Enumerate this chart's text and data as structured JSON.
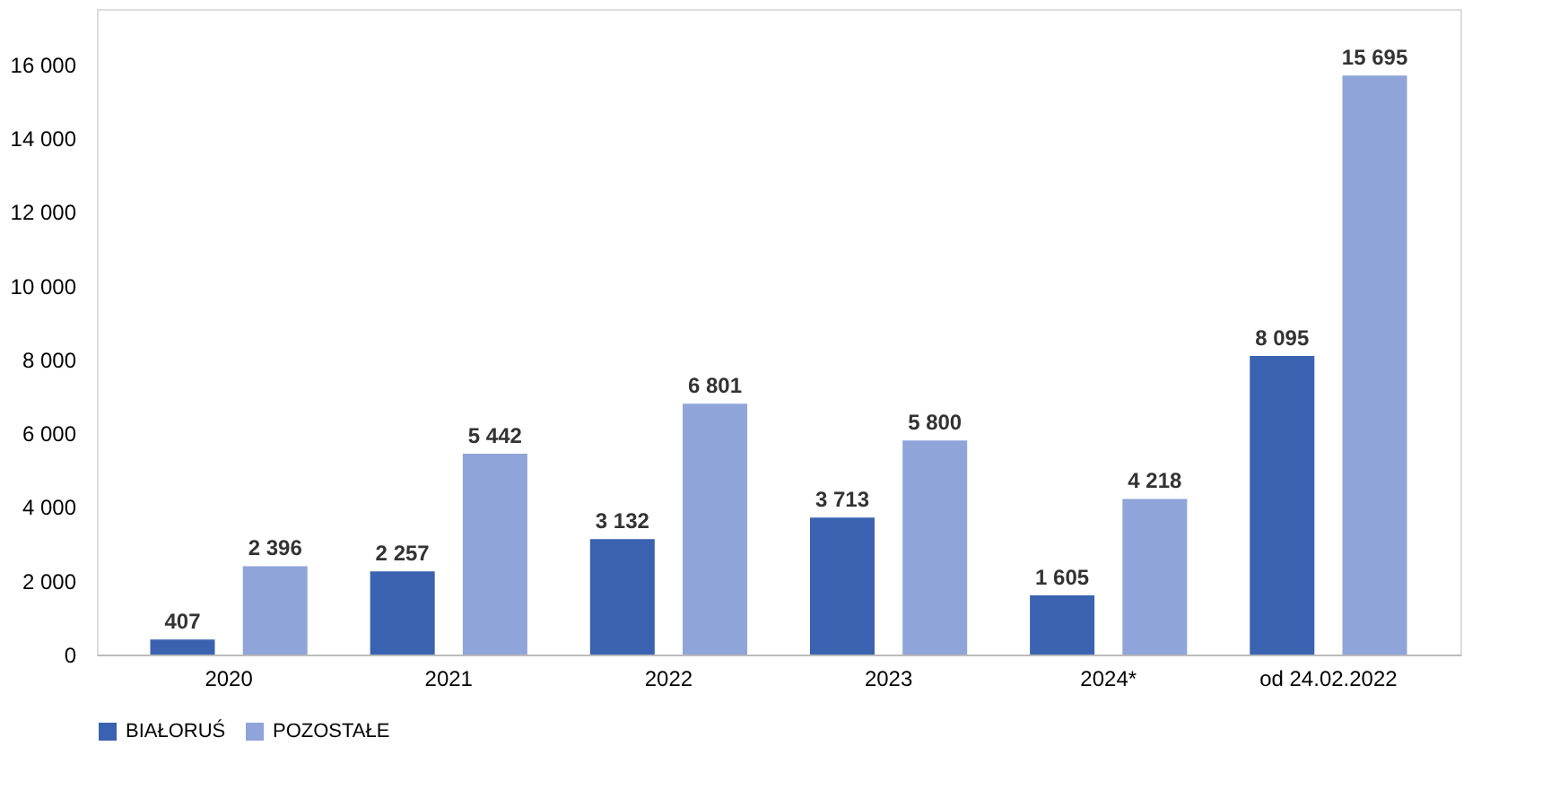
{
  "chart_data": {
    "type": "bar",
    "categories": [
      "2020",
      "2021",
      "2022",
      "2023",
      "2024*",
      "od 24.02.2022"
    ],
    "series": [
      {
        "name": "BIAŁORUŚ",
        "color": "#3a62b0",
        "values": [
          407,
          2257,
          3132,
          3713,
          1605,
          8095
        ],
        "value_labels": [
          "407",
          "2 257",
          "3 132",
          "3 713",
          "1 605",
          "8 095"
        ]
      },
      {
        "name": "POZOSTAŁE",
        "color": "#8fa4d8",
        "values": [
          2396,
          5442,
          6801,
          5800,
          4218,
          15695
        ],
        "value_labels": [
          "2 396",
          "5 442",
          "6 801",
          "5 800",
          "4 218",
          "15 695"
        ]
      }
    ],
    "ylim": [
      0,
      17500
    ],
    "yticks": [
      0,
      {
        "value": 2000,
        "label": "2 000"
      },
      {
        "value": 4000,
        "label": "4 000"
      },
      {
        "value": 6000,
        "label": "6 000"
      },
      {
        "value": 8000,
        "label": "8 000"
      },
      {
        "value": 10000,
        "label": "10 000"
      },
      {
        "value": 12000,
        "label": "12 000"
      },
      {
        "value": 14000,
        "label": "14 000"
      },
      {
        "value": 16000,
        "label": "16 000"
      }
    ],
    "grid": false,
    "legend": "bottom"
  }
}
